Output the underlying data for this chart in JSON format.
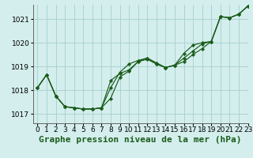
{
  "title": "Graphe pression niveau de la mer (hPa)",
  "background_color": "#d4eeed",
  "grid_color": "#aad4d0",
  "line_color": "#1a5c1a",
  "marker_color": "#1a5c1a",
  "xlim": [
    -0.5,
    23
  ],
  "ylim": [
    1016.6,
    1021.6
  ],
  "yticks": [
    1017,
    1018,
    1019,
    1020,
    1021
  ],
  "xtick_labels": [
    "0",
    "1",
    "2",
    "3",
    "4",
    "5",
    "6",
    "7",
    "8",
    "9",
    "10",
    "11",
    "12",
    "13",
    "14",
    "15",
    "16",
    "17",
    "18",
    "19",
    "20",
    "21",
    "22",
    "23"
  ],
  "series": [
    {
      "x": [
        0,
        1,
        2,
        3,
        4,
        5,
        6,
        7,
        8,
        9,
        10,
        11,
        12,
        13,
        14,
        15,
        16,
        17,
        18,
        19,
        20,
        21,
        22,
        23
      ],
      "y": [
        1018.1,
        1018.65,
        1017.75,
        1017.3,
        1017.25,
        1017.2,
        1017.2,
        1017.25,
        1017.65,
        1018.55,
        1018.8,
        1019.2,
        1019.3,
        1019.1,
        1018.95,
        1019.05,
        1019.55,
        1019.9,
        1020.0,
        1020.05,
        1021.1,
        1021.05,
        1021.2,
        1021.55
      ]
    },
    {
      "x": [
        0,
        1,
        2,
        3,
        4,
        5,
        6,
        7,
        8,
        9,
        10,
        11,
        12,
        13,
        14,
        15,
        16,
        17,
        18,
        19,
        20,
        21,
        22,
        23
      ],
      "y": [
        1018.1,
        1018.65,
        1017.75,
        1017.3,
        1017.25,
        1017.2,
        1017.2,
        1017.25,
        1018.1,
        1018.75,
        1019.1,
        1019.25,
        1019.35,
        1019.15,
        1018.95,
        1019.05,
        1019.35,
        1019.65,
        1019.95,
        1020.05,
        1021.1,
        1021.05,
        1021.2,
        1021.55
      ]
    },
    {
      "x": [
        0,
        1,
        2,
        3,
        4,
        5,
        6,
        7,
        8,
        9,
        10,
        11,
        12,
        13,
        14,
        15,
        16,
        17,
        18,
        19,
        20,
        21,
        22,
        23
      ],
      "y": [
        1018.1,
        1018.65,
        1017.75,
        1017.3,
        1017.25,
        1017.2,
        1017.2,
        1017.25,
        1018.4,
        1018.7,
        1018.85,
        1019.2,
        1019.35,
        1019.1,
        1018.95,
        1019.05,
        1019.2,
        1019.5,
        1019.75,
        1020.05,
        1021.1,
        1021.05,
        1021.2,
        1021.55
      ]
    }
  ],
  "title_fontsize": 8,
  "tick_fontsize": 6.5
}
